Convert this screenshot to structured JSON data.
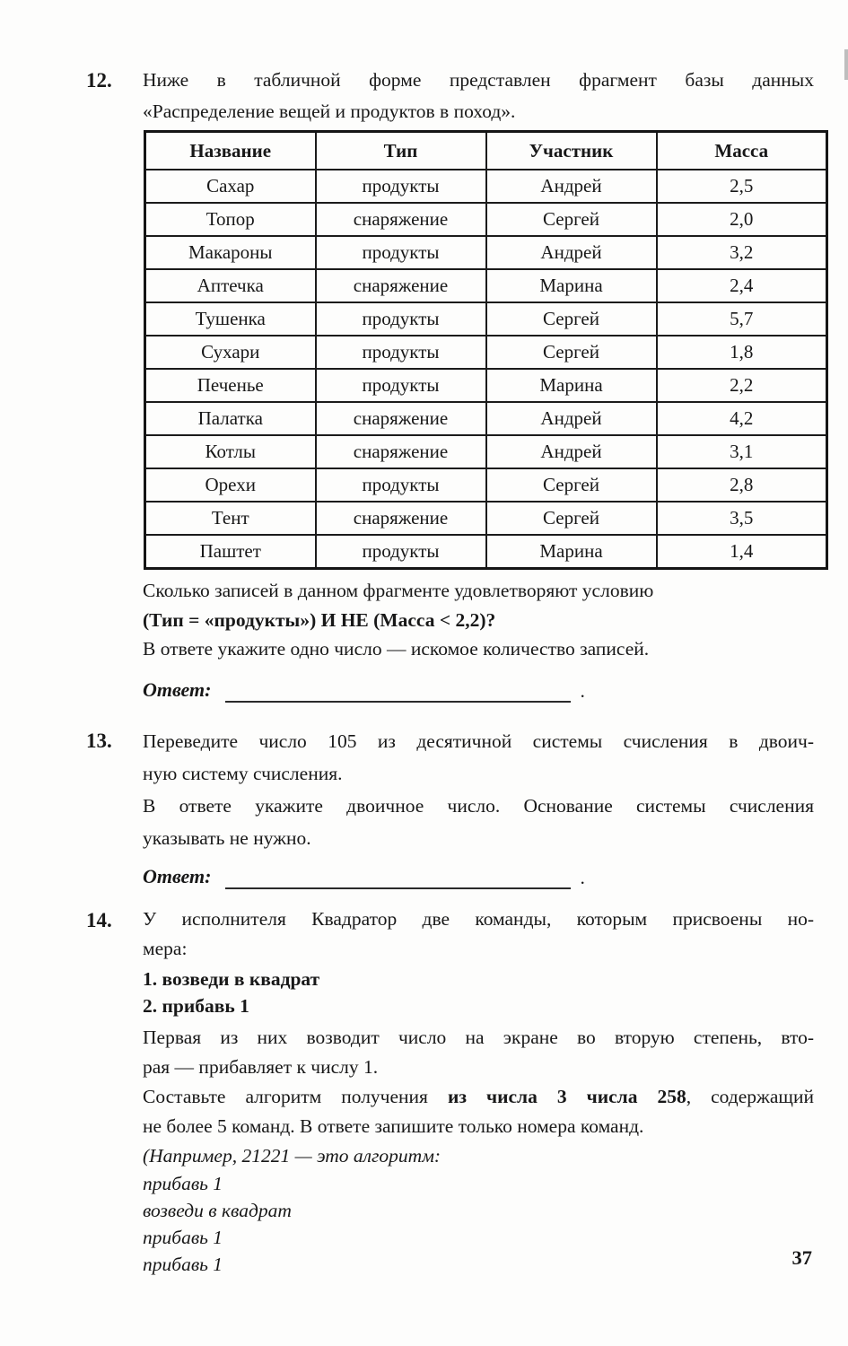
{
  "page": {
    "number": "37"
  },
  "p12": {
    "number": "12.",
    "intro_lines": [
      "Ниже в табличной форме представлен фрагмент базы данных",
      "«Распределение вещей и продуктов в поход»."
    ],
    "table": {
      "headers": [
        "Название",
        "Тип",
        "Участник",
        "Масса"
      ],
      "rows": [
        [
          "Сахар",
          "продукты",
          "Андрей",
          "2,5"
        ],
        [
          "Топор",
          "снаряжение",
          "Сергей",
          "2,0"
        ],
        [
          "Макароны",
          "продукты",
          "Андрей",
          "3,2"
        ],
        [
          "Аптечка",
          "снаряжение",
          "Марина",
          "2,4"
        ],
        [
          "Тушенка",
          "продукты",
          "Сергей",
          "5,7"
        ],
        [
          "Сухари",
          "продукты",
          "Сергей",
          "1,8"
        ],
        [
          "Печенье",
          "продукты",
          "Марина",
          "2,2"
        ],
        [
          "Палатка",
          "снаряжение",
          "Андрей",
          "4,2"
        ],
        [
          "Котлы",
          "снаряжение",
          "Андрей",
          "3,1"
        ],
        [
          "Орехи",
          "продукты",
          "Сергей",
          "2,8"
        ],
        [
          "Тент",
          "снаряжение",
          "Сергей",
          "3,5"
        ],
        [
          "Паштет",
          "продукты",
          "Марина",
          "1,4"
        ]
      ]
    },
    "question_line": "Сколько записей в данном фрагменте удовлетворяют условию",
    "condition_line": "(Тип = «продукты») И НЕ (Масса < 2,2)?",
    "note_line": "В ответе укажите одно число — искомое количество записей.",
    "answer_label": "Ответ:",
    "answer_period": "."
  },
  "p13": {
    "number": "13.",
    "task_lines": [
      "Переведите число 105 из десятичной системы счисления в двоич-",
      "ную систему счисления."
    ],
    "note_lines": [
      "В ответе укажите двоичное число. Основание системы счисления",
      "указывать не нужно."
    ],
    "answer_label": "Ответ:",
    "answer_period": "."
  },
  "p14": {
    "number": "14.",
    "intro_lines": [
      "У исполнителя Квадратор две команды, которым присвоены но-",
      "мера:"
    ],
    "commands": [
      "1. возведи в квадрат",
      "2. прибавь 1"
    ],
    "desc_lines": [
      "Первая из них возводит число на экране во вторую степень, вто-",
      "рая — прибавляет к числу 1."
    ],
    "task_line1_prefix": "Составьте алгоритм получения ",
    "task_line1_bold": "из числа 3 числа 258",
    "task_line1_suffix": ", содержащий",
    "task_line2": "не более 5 команд. В ответе запишите только номера команд.",
    "example_header": "(Например, 21221 — это алгоритм:",
    "example_lines": [
      "прибавь 1",
      "возведи в квадрат",
      "прибавь 1",
      "прибавь 1"
    ]
  }
}
